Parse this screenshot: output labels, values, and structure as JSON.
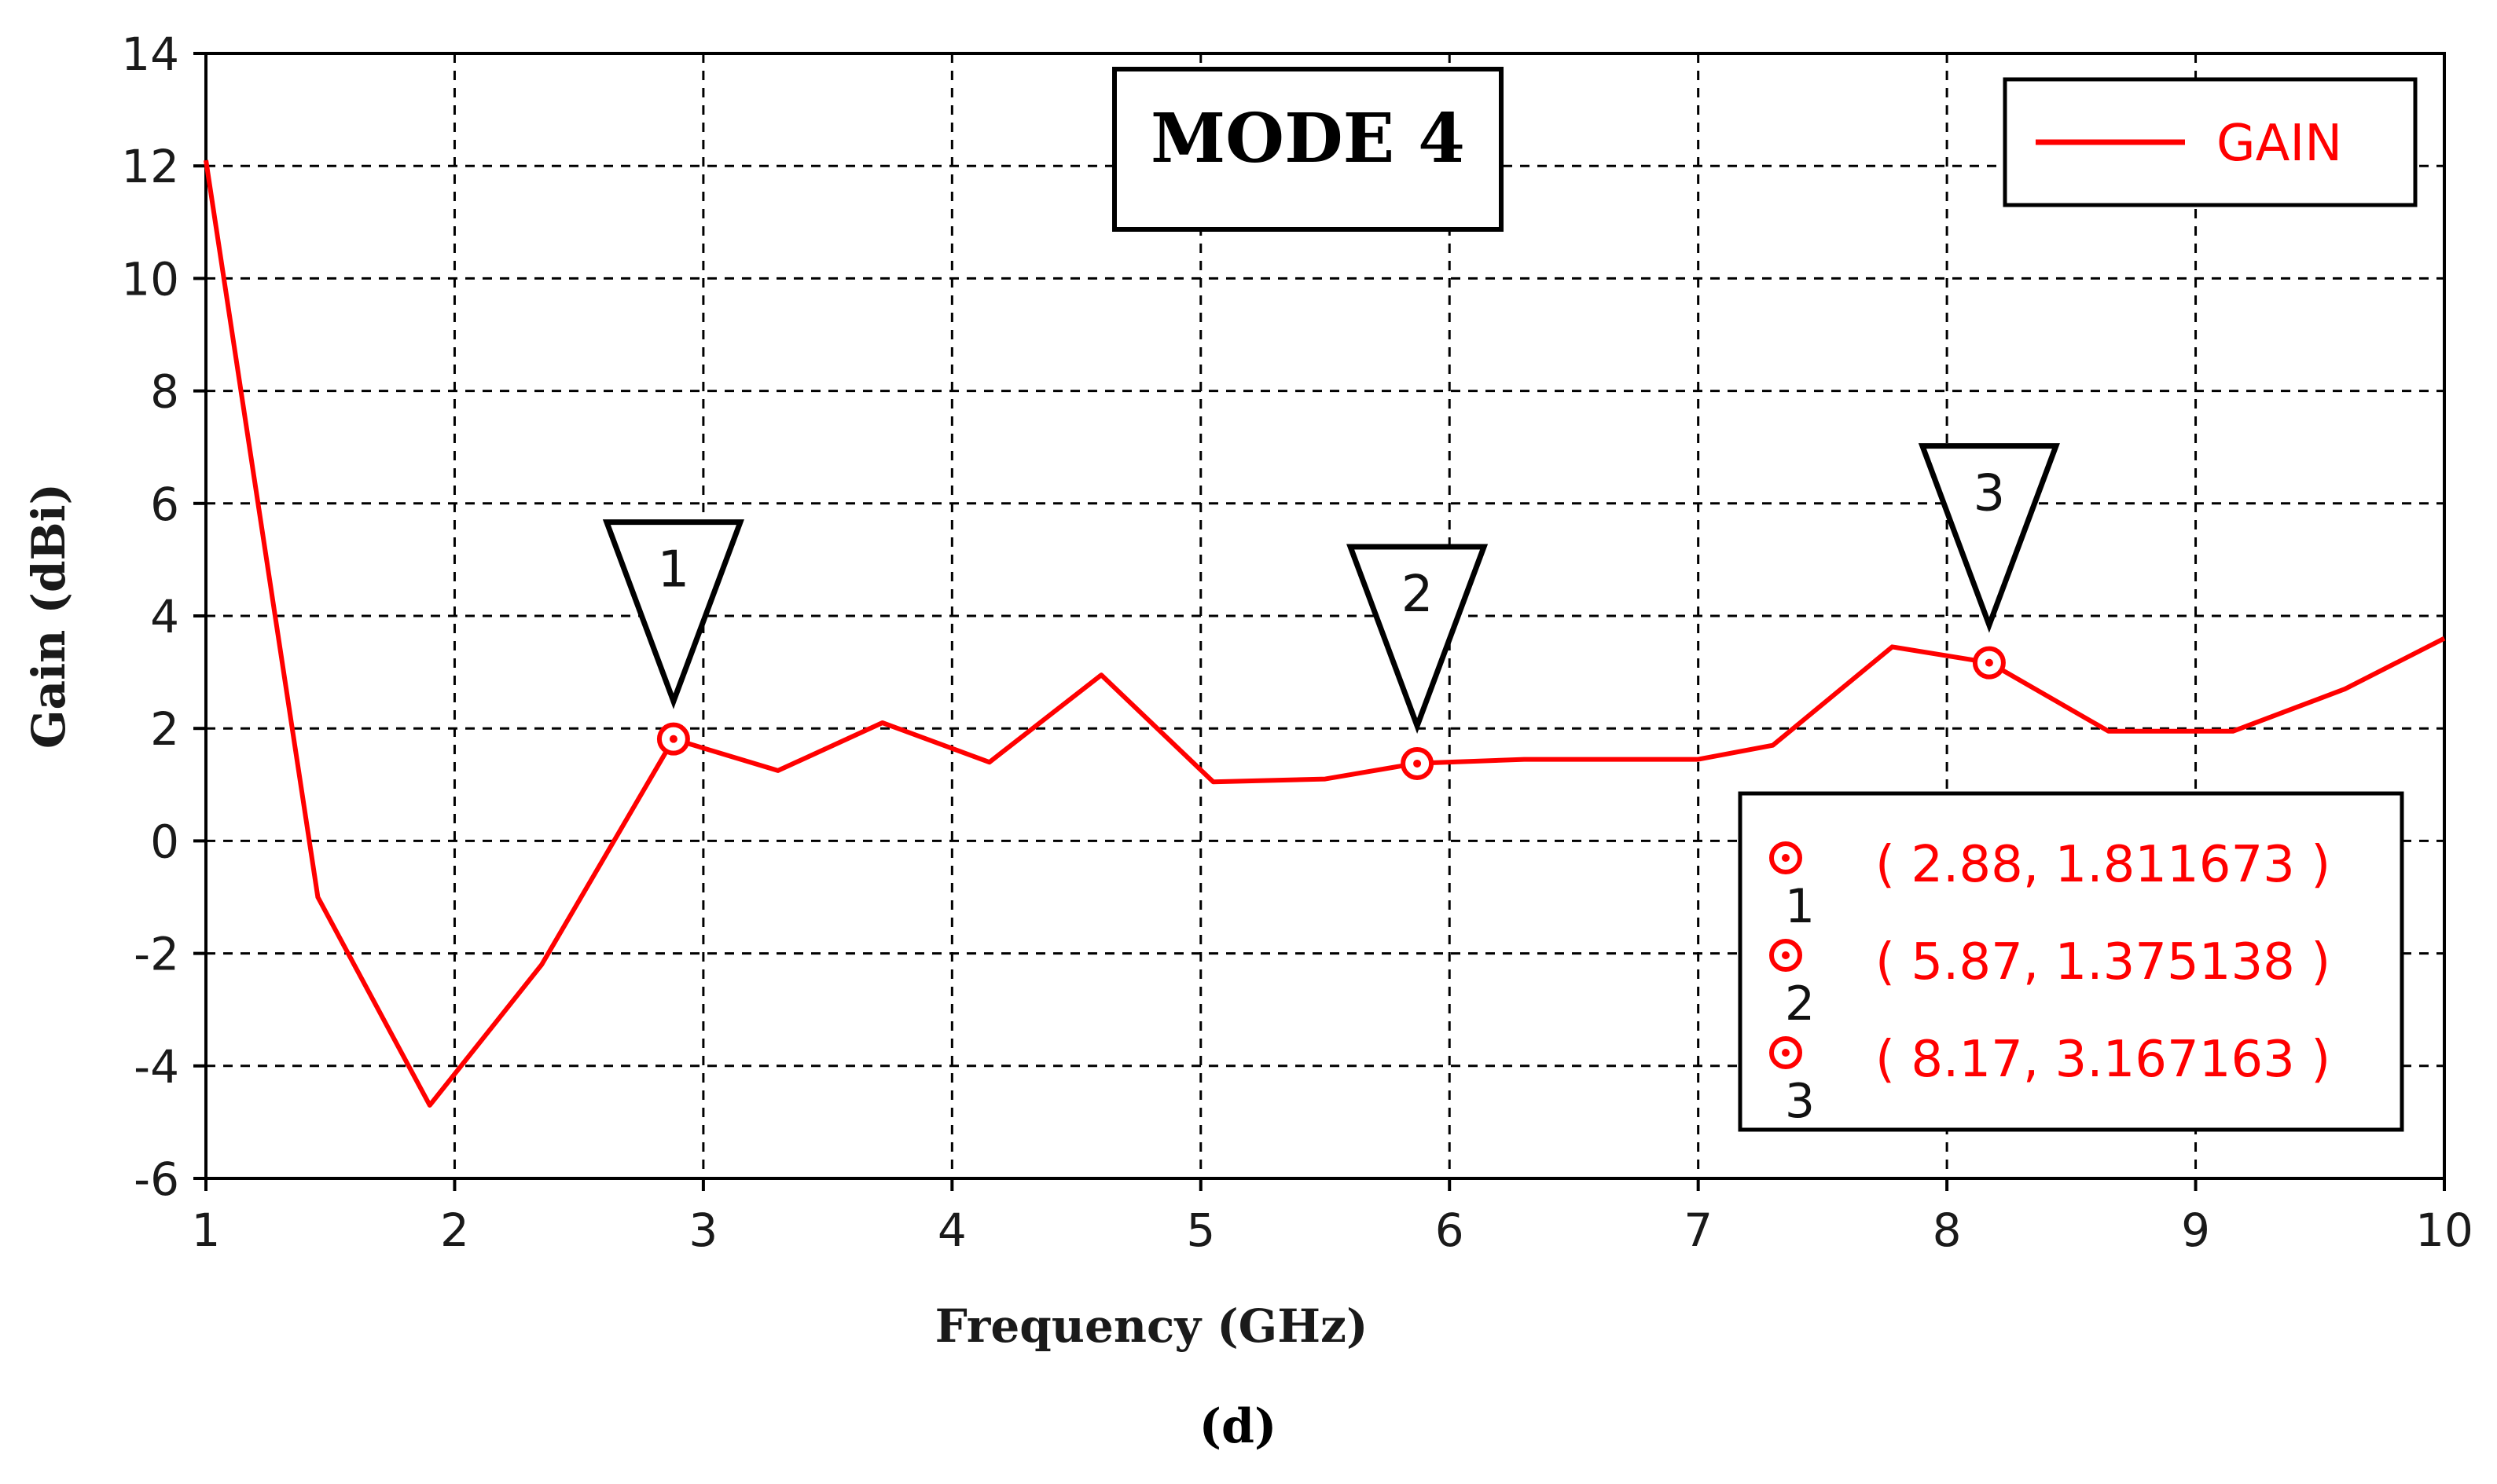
{
  "chart_data": {
    "type": "line",
    "title": "MODE 4",
    "xlabel": "Frequency (GHz)",
    "ylabel": "Gain (dBi)",
    "caption": "(d)",
    "xlim": [
      1,
      10
    ],
    "ylim": [
      -6,
      14
    ],
    "x_ticks": [
      1,
      2,
      3,
      4,
      5,
      6,
      7,
      8,
      9,
      10
    ],
    "y_ticks": [
      -6,
      -4,
      -2,
      0,
      2,
      4,
      6,
      8,
      10,
      12,
      14
    ],
    "grid": true,
    "legend_position": "top-right",
    "series": [
      {
        "name": "GAIN",
        "color": "#ff0000",
        "x": [
          1.0,
          1.45,
          1.9,
          2.35,
          2.88,
          3.3,
          3.72,
          4.15,
          4.6,
          5.05,
          5.5,
          5.87,
          6.3,
          7.0,
          7.3,
          7.78,
          8.17,
          8.65,
          9.15,
          9.6,
          10.0
        ],
        "y": [
          12.1,
          -1.0,
          -4.7,
          -2.2,
          1.81,
          1.25,
          2.1,
          1.4,
          2.95,
          1.05,
          1.1,
          1.38,
          1.45,
          1.45,
          1.7,
          3.45,
          3.17,
          1.95,
          1.95,
          2.7,
          3.6
        ]
      }
    ],
    "markers": [
      {
        "label": "1",
        "x": 2.88,
        "y": 1.811673,
        "readout": "( 2.88, 1.811673 )"
      },
      {
        "label": "2",
        "x": 5.87,
        "y": 1.375138,
        "readout": "( 5.87, 1.375138 )"
      },
      {
        "label": "3",
        "x": 8.17,
        "y": 3.167163,
        "readout": "( 8.17, 3.167163 )"
      }
    ]
  }
}
